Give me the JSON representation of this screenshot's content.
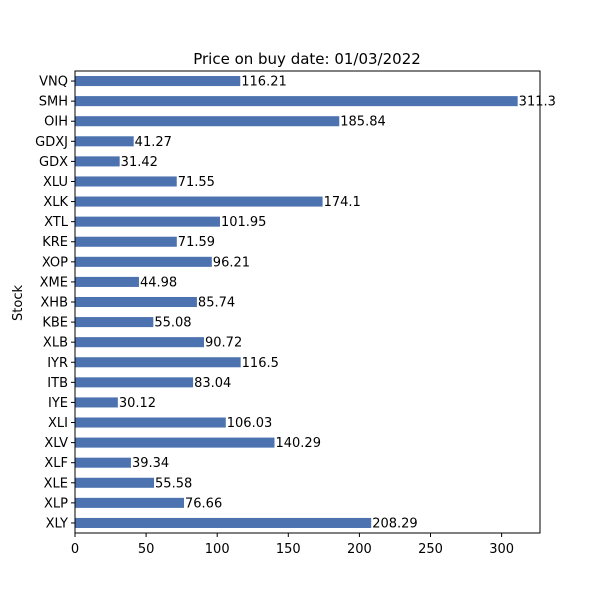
{
  "chart_data": {
    "type": "bar",
    "orientation": "horizontal",
    "title": "Price on buy date: 01/03/2022",
    "xlabel": "",
    "ylabel": "Stock",
    "xlim": [
      0,
      327
    ],
    "xticks": [
      0,
      50,
      100,
      150,
      200,
      250,
      300
    ],
    "grid": false,
    "bar_color": "#4c72b0",
    "categories": [
      "VNQ",
      "SMH",
      "OIH",
      "GDXJ",
      "GDX",
      "XLU",
      "XLK",
      "XTL",
      "KRE",
      "XOP",
      "XME",
      "XHB",
      "KBE",
      "XLB",
      "IYR",
      "ITB",
      "IYE",
      "XLI",
      "XLV",
      "XLF",
      "XLE",
      "XLP",
      "XLY"
    ],
    "values": [
      116.21,
      311.3,
      185.84,
      41.27,
      31.42,
      71.55,
      174.1,
      101.95,
      71.59,
      96.21,
      44.98,
      85.74,
      55.08,
      90.72,
      116.5,
      83.04,
      30.12,
      106.03,
      140.29,
      39.34,
      55.58,
      76.66,
      208.29
    ],
    "value_labels": [
      "116.21",
      "311.3",
      "185.84",
      "41.27",
      "31.42",
      "71.55",
      "174.1",
      "101.95",
      "71.59",
      "96.21",
      "44.98",
      "85.74",
      "55.08",
      "90.72",
      "116.5",
      "83.04",
      "30.12",
      "106.03",
      "140.29",
      "39.34",
      "55.58",
      "76.66",
      "208.29"
    ]
  }
}
